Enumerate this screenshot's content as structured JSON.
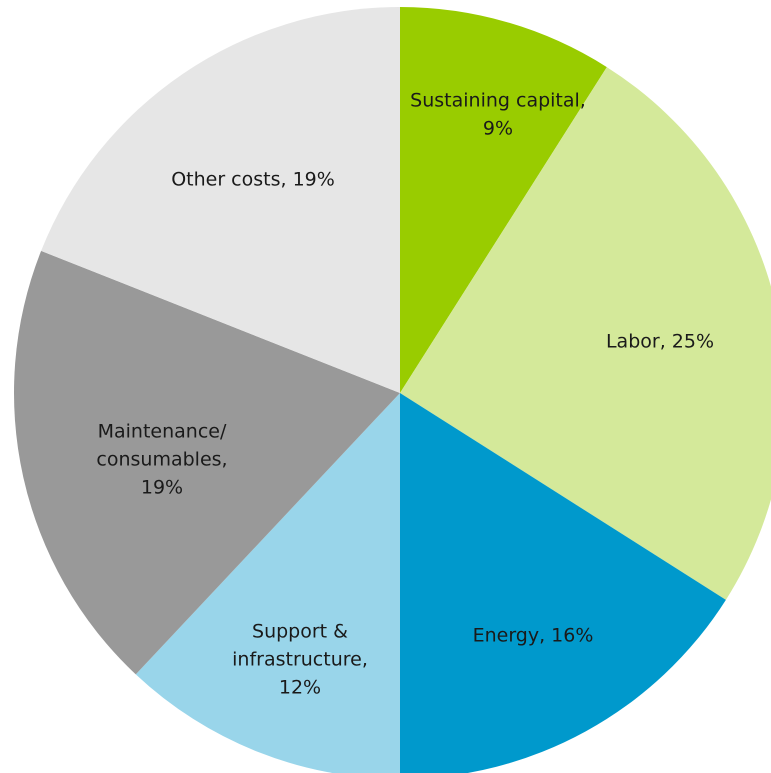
{
  "chart_data": {
    "type": "pie",
    "values": [
      9,
      25,
      16,
      12,
      19,
      19
    ],
    "labels": [
      [
        "Sustaining capital,",
        "9%"
      ],
      [
        "Labor, 25%"
      ],
      [
        "Energy, 16%"
      ],
      [
        "Support &",
        "infrastructure,",
        "12%"
      ],
      [
        "Maintenance/",
        "consumables,",
        "19%"
      ],
      [
        "Other costs, 19%"
      ]
    ],
    "colors": [
      "#99cc00",
      "#d4e99a",
      "#0099cc",
      "#99d5ea",
      "#999999",
      "#e6e6e6"
    ]
  }
}
